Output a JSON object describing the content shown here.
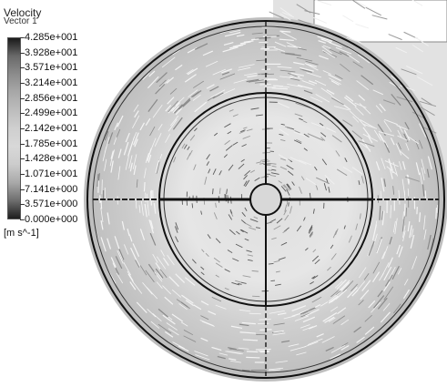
{
  "legend": {
    "title": "Velocity",
    "subtitle": "Vector 1",
    "unit": "[m s^-1]",
    "ticks": [
      "4.285e+001",
      "3.928e+001",
      "3.571e+001",
      "3.214e+001",
      "2.856e+001",
      "2.499e+001",
      "2.142e+001",
      "1.785e+001",
      "1.428e+001",
      "1.071e+001",
      "7.141e+000",
      "3.571e+000",
      "0.000e+000"
    ]
  },
  "colors": {
    "background": "#ffffff",
    "outline": "#111111",
    "vector_light": "#d4d4d4",
    "vector_dark": "#555555",
    "housing": "#aaaaaa"
  }
}
